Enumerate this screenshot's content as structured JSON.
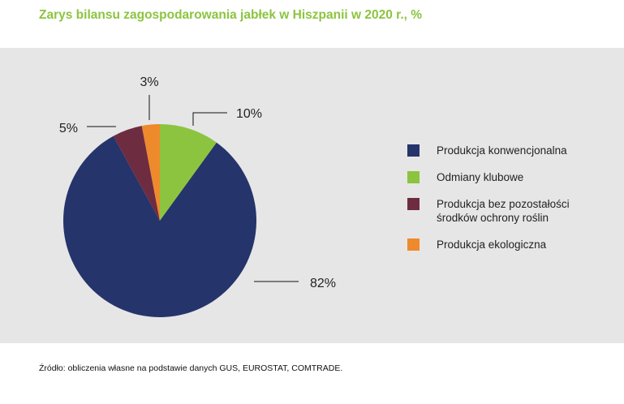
{
  "title": "Zarys bilansu zagospodarowania jabłek w Hiszpanii w 2020 r., %",
  "source": "Źródło: obliczenia własne na podstawie danych GUS, EUROSTAT, COMTRADE.",
  "legend": [
    {
      "label": "Produkcja konwencjonalna",
      "color": "#25346b"
    },
    {
      "label": "Odmiany klubowe",
      "color": "#8cc43f"
    },
    {
      "label": "Produkcja bez pozostałości środków ochrony roślin",
      "color": "#6e2c41"
    },
    {
      "label": "Produkcja ekologiczna",
      "color": "#ee8a2c"
    }
  ],
  "chart_data": {
    "type": "pie",
    "title": "Zarys bilansu zagospodarowania jabłek w Hiszpanii w 2020 r., %",
    "slices": [
      {
        "label": "Produkcja konwencjonalna",
        "value": 82,
        "display": "82%",
        "color": "#25346b"
      },
      {
        "label": "Odmiany klubowe",
        "value": 10,
        "display": "10%",
        "color": "#8cc43f"
      },
      {
        "label": "Produkcja bez pozostałości środków ochrony roślin",
        "value": 5,
        "display": "5%",
        "color": "#6e2c41"
      },
      {
        "label": "Produkcja ekologiczna",
        "value": 3,
        "display": "3%",
        "color": "#ee8a2c"
      }
    ],
    "legend_position": "right"
  }
}
